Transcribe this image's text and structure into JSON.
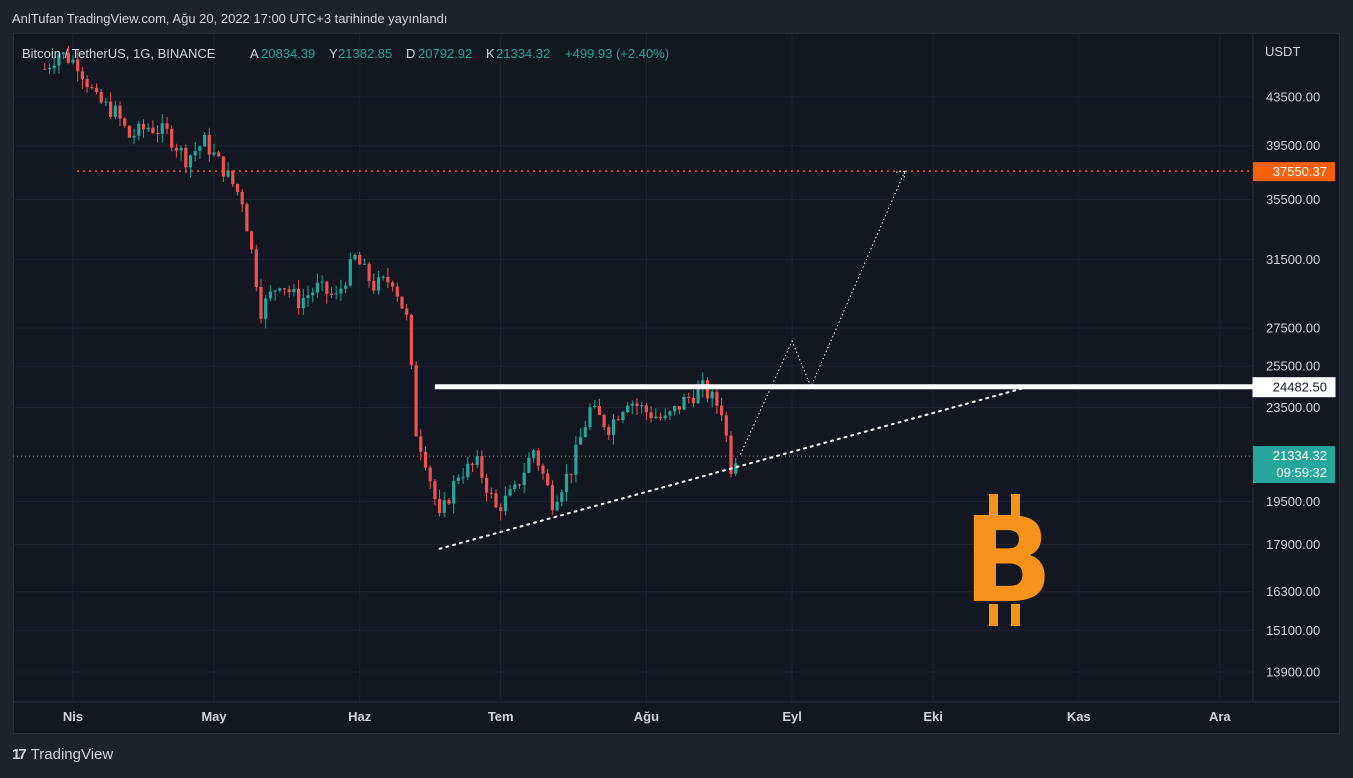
{
  "header": {
    "publish_line": "AnlTufan TradingView.com, Ağu 20, 2022 17:00 UTC+3 tarihinde yayınlandı"
  },
  "legend": {
    "symbol": "Bitcoin / TetherUS, 1G, BINANCE",
    "open_label": "A",
    "open": "20834.39",
    "high_label": "Y",
    "high": "21382.85",
    "low_label": "D",
    "low": "20792.92",
    "close_label": "K",
    "close": "21334.32",
    "change": "+499.93 (+2.40%)"
  },
  "footer": {
    "brand": "TradingView",
    "brand_mark": "17"
  },
  "colors": {
    "up": "#26a69a",
    "down": "#ef5350",
    "target": "#f7600a",
    "bitcoin": "#f7931a"
  },
  "chart_data": {
    "type": "candlestick",
    "scale": "log",
    "currency": "USDT",
    "y_ticks": [
      "43500.00",
      "39500.00",
      "35500.00",
      "31500.00",
      "27500.00",
      "25500.00",
      "23500.00",
      "19500.00",
      "17900.00",
      "16300.00",
      "15100.00",
      "13900.00"
    ],
    "y_tick_values": [
      43500,
      39500,
      35500,
      31500,
      27500,
      25500,
      23500,
      19500,
      17900,
      16300,
      15100,
      13900
    ],
    "x_ticks": [
      "Nis",
      "May",
      "Haz",
      "Tem",
      "Ağu",
      "Eyl",
      "Eki",
      "Kas",
      "Ara"
    ],
    "x_tick_dates": [
      "2022-04-01",
      "2022-05-01",
      "2022-06-01",
      "2022-07-01",
      "2022-08-01",
      "2022-09-01",
      "2022-10-01",
      "2022-11-01",
      "2022-12-01"
    ],
    "price_labels": {
      "target": "37550.37",
      "resistance": "24482.50",
      "last": "21334.32",
      "countdown": "09:59:32"
    },
    "target_level": 37550.37,
    "resistance_level": 24482.5,
    "last_price": 21334.32,
    "support_line": [
      [
        "2022-06-18",
        17750
      ],
      [
        "2022-10-20",
        24400
      ]
    ],
    "projection_path": [
      [
        "2022-08-21",
        21400
      ],
      [
        "2022-09-01",
        26800
      ],
      [
        "2022-09-05",
        24480
      ],
      [
        "2022-09-25",
        37550
      ]
    ],
    "trend_shape": [
      [
        "2022-03-26",
        46000
      ],
      [
        "2022-03-29",
        47500
      ],
      [
        "2022-04-02",
        46500
      ],
      [
        "2022-04-06",
        43200
      ],
      [
        "2022-04-10",
        42200
      ],
      [
        "2022-04-13",
        40200
      ],
      [
        "2022-04-17",
        41000
      ],
      [
        "2022-04-21",
        40500
      ],
      [
        "2022-04-25",
        38500
      ],
      [
        "2022-04-29",
        39800
      ],
      [
        "2022-05-03",
        37700
      ],
      [
        "2022-05-07",
        35500
      ],
      [
        "2022-05-11",
        28500
      ],
      [
        "2022-05-15",
        30200
      ],
      [
        "2022-05-19",
        29000
      ],
      [
        "2022-05-23",
        29800
      ],
      [
        "2022-05-27",
        29200
      ],
      [
        "2022-05-31",
        31600
      ],
      [
        "2022-06-04",
        29900
      ],
      [
        "2022-06-08",
        30300
      ],
      [
        "2022-06-11",
        28000
      ],
      [
        "2022-06-13",
        22400
      ],
      [
        "2022-06-15",
        21200
      ],
      [
        "2022-06-18",
        18800
      ],
      [
        "2022-06-22",
        20600
      ],
      [
        "2022-06-26",
        21000
      ],
      [
        "2022-06-30",
        19200
      ],
      [
        "2022-07-04",
        19900
      ],
      [
        "2022-07-08",
        21600
      ],
      [
        "2022-07-12",
        19500
      ],
      [
        "2022-07-16",
        20800
      ],
      [
        "2022-07-20",
        23400
      ],
      [
        "2022-07-24",
        22600
      ],
      [
        "2022-07-28",
        23900
      ],
      [
        "2022-08-01",
        23300
      ],
      [
        "2022-08-05",
        22900
      ],
      [
        "2022-08-09",
        23800
      ],
      [
        "2022-08-13",
        24400
      ],
      [
        "2022-08-17",
        23400
      ],
      [
        "2022-08-19",
        20900
      ],
      [
        "2022-08-20",
        21334
      ]
    ]
  }
}
